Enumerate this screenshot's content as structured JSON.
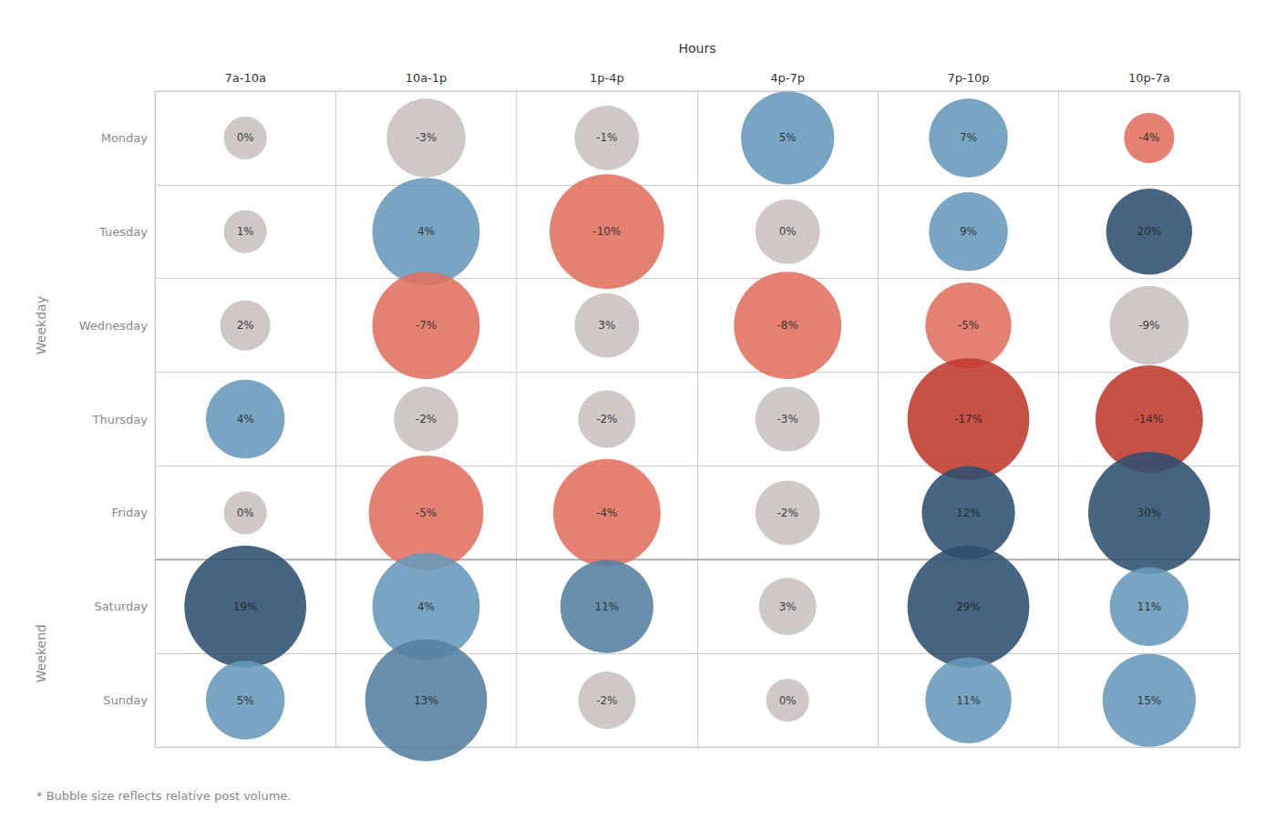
{
  "chart_data": {
    "type": "bubble",
    "xlabel": "Hours",
    "categories": [
      "7a-10a",
      "10a-1p",
      "1p-4p",
      "4p-7p",
      "7p-10p",
      "10p-7a"
    ],
    "y_categories": [
      "Monday",
      "Tuesday",
      "Wednesday",
      "Thursday",
      "Friday",
      "Saturday",
      "Sunday"
    ],
    "groups": [
      {
        "label": "Weekday",
        "categories": [
          "Monday",
          "Tuesday",
          "Wednesday",
          "Thursday",
          "Friday"
        ]
      },
      {
        "label": "Weekend",
        "categories": [
          "Saturday",
          "Sunday"
        ]
      }
    ],
    "footnote": "* Bubble size reflects relative post volume.",
    "values": [
      [
        0,
        -3,
        -1,
        5,
        7,
        -4
      ],
      [
        1,
        4,
        -10,
        0,
        9,
        20
      ],
      [
        2,
        -7,
        3,
        -8,
        -5,
        -9
      ],
      [
        4,
        -2,
        -2,
        -3,
        -17,
        -14
      ],
      [
        0,
        -5,
        -4,
        -2,
        12,
        30
      ],
      [
        19,
        4,
        11,
        3,
        29,
        11
      ],
      [
        5,
        13,
        -2,
        0,
        11,
        15
      ]
    ],
    "value_labels": [
      [
        "0%",
        "-3%",
        "-1%",
        "5%",
        "7%",
        "-4%"
      ],
      [
        "1%",
        "4%",
        "-10%",
        "0%",
        "9%",
        "20%"
      ],
      [
        "2%",
        "-7%",
        "3%",
        "-8%",
        "-5%",
        "-9%"
      ],
      [
        "4%",
        "-2%",
        "-2%",
        "-3%",
        "-17%",
        "-14%"
      ],
      [
        "0%",
        "-5%",
        "-4%",
        "-2%",
        "12%",
        "30%"
      ],
      [
        "19%",
        "4%",
        "11%",
        "3%",
        "29%",
        "11%"
      ],
      [
        "5%",
        "13%",
        "-2%",
        "0%",
        "11%",
        "15%"
      ]
    ],
    "sizes": [
      [
        30,
        55,
        45,
        65,
        55,
        35
      ],
      [
        30,
        75,
        80,
        45,
        55,
        60
      ],
      [
        35,
        75,
        45,
        75,
        60,
        55
      ],
      [
        55,
        45,
        40,
        45,
        85,
        75
      ],
      [
        30,
        80,
        75,
        45,
        65,
        85
      ],
      [
        85,
        75,
        65,
        40,
        85,
        55
      ],
      [
        55,
        85,
        40,
        30,
        60,
        65
      ]
    ],
    "colors": [
      [
        "#c9bfbf",
        "#c9bfbf",
        "#c9bfbf",
        "#6699bb",
        "#6699bb",
        "#e07060"
      ],
      [
        "#c9bfbf",
        "#6699bb",
        "#e07060",
        "#c9bfbf",
        "#6699bb",
        "#2e4f70"
      ],
      [
        "#c9bfbf",
        "#e07060",
        "#c9bfbf",
        "#e07060",
        "#e07060",
        "#c9bfbf"
      ],
      [
        "#6699bb",
        "#c9bfbf",
        "#c9bfbf",
        "#c9bfbf",
        "#c0392b",
        "#c0392b"
      ],
      [
        "#c9bfbf",
        "#e07060",
        "#e07060",
        "#c9bfbf",
        "#2e4f70",
        "#2e4f70"
      ],
      [
        "#2e4f70",
        "#6699bb",
        "#5580a0",
        "#c9bfbf",
        "#2e4f70",
        "#6699bb"
      ],
      [
        "#6699bb",
        "#5580a0",
        "#c9bfbf",
        "#c9bfbf",
        "#6699bb",
        "#6699bb"
      ]
    ],
    "data_labels": true,
    "grid": true
  }
}
